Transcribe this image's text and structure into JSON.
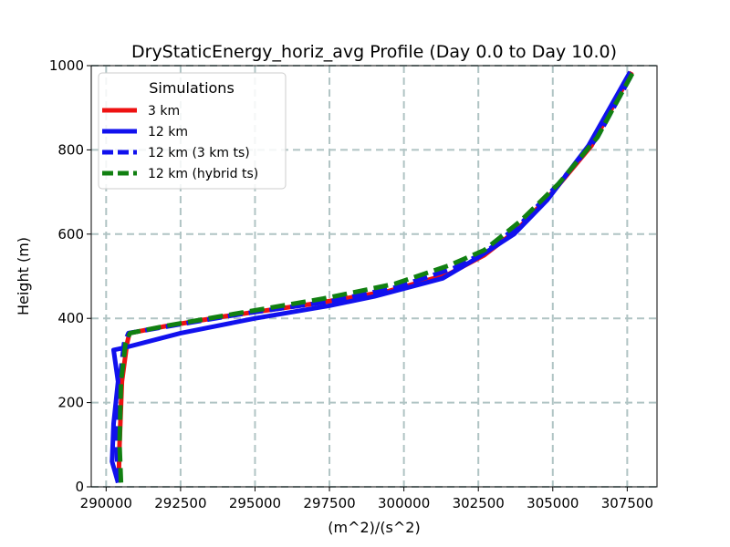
{
  "chart_data": {
    "type": "line",
    "title": "DryStaticEnergy_horiz_avg Profile (Day 0.0 to Day 10.0)",
    "xlabel": "(m^2)/(s^2)",
    "ylabel": "Height (m)",
    "xlim": [
      289500,
      308500
    ],
    "ylim": [
      0,
      1000
    ],
    "xticks": [
      290000,
      292500,
      295000,
      297500,
      300000,
      302500,
      305000,
      307500
    ],
    "xtick_labels": [
      "290000",
      "292500",
      "295000",
      "297500",
      "300000",
      "302500",
      "305000",
      "307500"
    ],
    "yticks": [
      0,
      200,
      400,
      600,
      800,
      1000
    ],
    "ytick_labels": [
      "0",
      "200",
      "400",
      "600",
      "800",
      "1000"
    ],
    "grid": true,
    "legend": {
      "title": "Simulations",
      "placement": "upper-left"
    },
    "series": [
      {
        "name": "3 km",
        "color": "#ee1111",
        "style": "solid",
        "points": [
          [
            290420,
            10
          ],
          [
            290450,
            100
          ],
          [
            290530,
            250
          ],
          [
            290700,
            340
          ],
          [
            290780,
            365
          ],
          [
            291900,
            380
          ],
          [
            294000,
            405
          ],
          [
            297000,
            435
          ],
          [
            299500,
            465
          ],
          [
            301500,
            505
          ],
          [
            302700,
            550
          ],
          [
            303800,
            610
          ],
          [
            305000,
            700
          ],
          [
            306300,
            810
          ],
          [
            307650,
            985
          ]
        ]
      },
      {
        "name": "12 km",
        "color": "#1111ee",
        "style": "solid",
        "points": [
          [
            290400,
            10
          ],
          [
            290200,
            60
          ],
          [
            290250,
            150
          ],
          [
            290400,
            250
          ],
          [
            290250,
            325
          ],
          [
            290600,
            330
          ],
          [
            292500,
            365
          ],
          [
            295000,
            400
          ],
          [
            297500,
            430
          ],
          [
            299000,
            452
          ],
          [
            301300,
            495
          ],
          [
            302500,
            545
          ],
          [
            303700,
            600
          ],
          [
            304800,
            680
          ],
          [
            306200,
            810
          ],
          [
            307600,
            985
          ]
        ]
      },
      {
        "name": "12 km (3 km ts)",
        "color": "#1111ee",
        "style": "dashed",
        "points": [
          [
            290400,
            10
          ],
          [
            290350,
            100
          ],
          [
            290450,
            250
          ],
          [
            290600,
            340
          ],
          [
            290750,
            365
          ],
          [
            292000,
            380
          ],
          [
            294500,
            410
          ],
          [
            297500,
            440
          ],
          [
            299800,
            475
          ],
          [
            301700,
            520
          ],
          [
            302800,
            560
          ],
          [
            304000,
            630
          ],
          [
            305200,
            720
          ],
          [
            306500,
            830
          ],
          [
            307700,
            985
          ]
        ]
      },
      {
        "name": "12 km (hybrid ts)",
        "color": "#118011",
        "style": "dashed",
        "points": [
          [
            290500,
            10
          ],
          [
            290450,
            100
          ],
          [
            290500,
            250
          ],
          [
            290650,
            340
          ],
          [
            290800,
            365
          ],
          [
            292000,
            382
          ],
          [
            294500,
            413
          ],
          [
            297300,
            447
          ],
          [
            299700,
            482
          ],
          [
            301500,
            525
          ],
          [
            302700,
            562
          ],
          [
            303900,
            630
          ],
          [
            305200,
            720
          ],
          [
            306500,
            830
          ],
          [
            307700,
            985
          ]
        ]
      }
    ]
  }
}
